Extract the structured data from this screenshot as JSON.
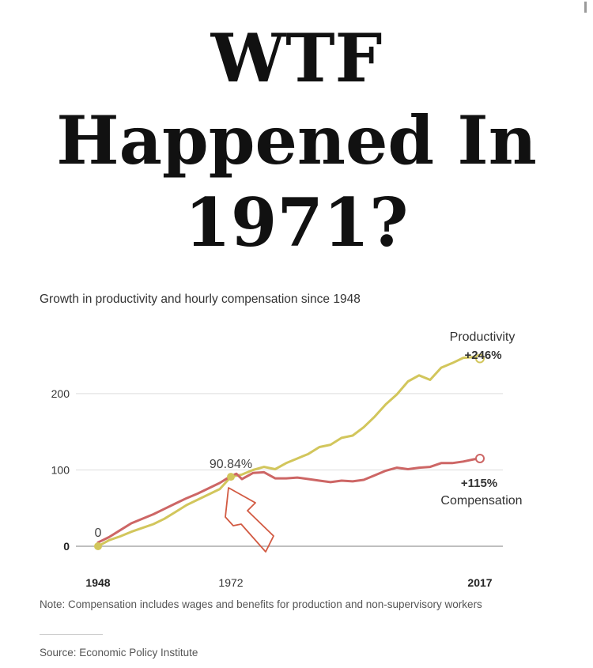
{
  "headline": [
    "WTF",
    "Happened In",
    "1971?"
  ],
  "footer": {
    "note": "Note: Compensation includes wages and benefits for production and non-supervisory workers",
    "source": "Source: Economic Policy Institute"
  },
  "colors": {
    "productivity": "#d2c65c",
    "compensation": "#cd6665",
    "arrow": "#d25a42",
    "grid": "#dddddd",
    "baseline": "#999999"
  },
  "chart_data": {
    "type": "line",
    "title": "Growth in productivity and hourly compensation since 1948",
    "xlim": [
      1948,
      2017
    ],
    "ylim": [
      0,
      260
    ],
    "y_ticks": [
      0,
      100,
      200
    ],
    "x_ticks": [
      {
        "value": 1948,
        "label": "1948",
        "bold": true
      },
      {
        "value": 1972,
        "label": "1972",
        "bold": false
      },
      {
        "value": 2017,
        "label": "2017",
        "bold": true
      }
    ],
    "grid": true,
    "series": [
      {
        "name": "Productivity",
        "end_label": "+246%",
        "x": [
          1948,
          1950,
          1952,
          1954,
          1956,
          1958,
          1960,
          1962,
          1964,
          1966,
          1968,
          1970,
          1971,
          1972,
          1974,
          1976,
          1978,
          1980,
          1982,
          1984,
          1986,
          1988,
          1990,
          1992,
          1994,
          1996,
          1998,
          2000,
          2002,
          2004,
          2006,
          2008,
          2010,
          2012,
          2014,
          2016,
          2017
        ],
        "y": [
          0,
          8,
          13,
          19,
          24,
          29,
          36,
          45,
          54,
          61,
          68,
          75,
          83,
          91,
          94,
          100,
          104,
          101,
          109,
          115,
          121,
          130,
          133,
          142,
          145,
          156,
          170,
          186,
          199,
          216,
          224,
          218,
          234,
          240,
          247,
          248,
          246
        ]
      },
      {
        "name": "Compensation",
        "end_label": "+115%",
        "x": [
          1948,
          1950,
          1952,
          1954,
          1956,
          1958,
          1960,
          1962,
          1964,
          1966,
          1968,
          1970,
          1972,
          1973,
          1974,
          1976,
          1978,
          1980,
          1982,
          1984,
          1986,
          1988,
          1990,
          1992,
          1994,
          1996,
          1998,
          2000,
          2002,
          2004,
          2006,
          2008,
          2010,
          2012,
          2014,
          2016,
          2017
        ],
        "y": [
          5,
          12,
          21,
          30,
          36,
          42,
          49,
          56,
          63,
          69,
          76,
          83,
          92,
          95,
          88,
          96,
          97,
          89,
          89,
          90,
          88,
          86,
          84,
          86,
          85,
          87,
          93,
          99,
          103,
          101,
          103,
          104,
          109,
          109,
          111,
          114,
          115
        ]
      }
    ],
    "annotations": [
      {
        "x": 1948,
        "y": 0,
        "text": "0"
      },
      {
        "x": 1972,
        "y": 91,
        "text": "90.84%"
      }
    ]
  }
}
